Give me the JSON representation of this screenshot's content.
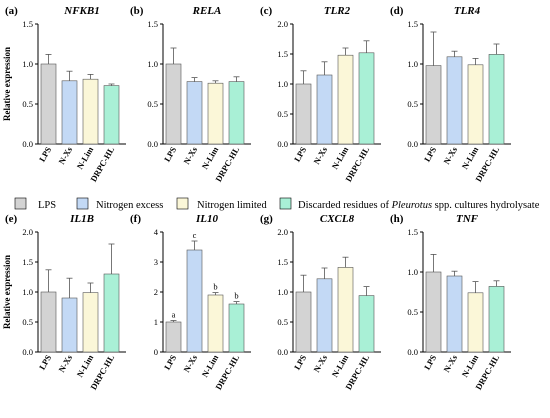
{
  "figure": {
    "ylabel": "Relative expression",
    "legend": [
      {
        "label": "LPS",
        "color": "#d3d3d3"
      },
      {
        "label": "Nitrogen excess",
        "color": "#c3d9f5"
      },
      {
        "label": "Nitrogen limited",
        "color": "#fbf7d8"
      },
      {
        "label_parts": [
          "Discarded residues of ",
          "Pleurotus",
          " spp. cultures hydrolysate"
        ],
        "color": "#a9f0d6"
      }
    ]
  },
  "chart_data": [
    {
      "type": "bar",
      "panel": "(a)",
      "title": "NFKB1",
      "categories": [
        "LPS",
        "N-Xs",
        "N-Lim",
        "DRPC-HL"
      ],
      "values": [
        1.0,
        0.79,
        0.81,
        0.73
      ],
      "errors": [
        0.12,
        0.12,
        0.06,
        0.02
      ],
      "ylim": [
        0,
        1.5
      ],
      "ticks": [
        "0.0",
        "0.5",
        "1.0",
        "1.5"
      ],
      "letters": [
        "",
        "",
        "",
        ""
      ],
      "ylabel": "Relative expression"
    },
    {
      "type": "bar",
      "panel": "(b)",
      "title": "RELA",
      "categories": [
        "LPS",
        "N-Xs",
        "N-Lim",
        "DRPC-HL"
      ],
      "values": [
        1.0,
        0.78,
        0.76,
        0.78
      ],
      "errors": [
        0.2,
        0.05,
        0.03,
        0.06
      ],
      "ylim": [
        0,
        1.5
      ],
      "ticks": [
        "0.0",
        "0.5",
        "1.0",
        "1.5"
      ],
      "letters": [
        "",
        "",
        "",
        ""
      ],
      "ylabel": ""
    },
    {
      "type": "bar",
      "panel": "(c)",
      "title": "TLR2",
      "categories": [
        "LPS",
        "N-Xs",
        "N-Lim",
        "DRPC-HL"
      ],
      "values": [
        1.0,
        1.15,
        1.48,
        1.52
      ],
      "errors": [
        0.22,
        0.22,
        0.12,
        0.2
      ],
      "ylim": [
        0,
        2.0
      ],
      "ticks": [
        "0.0",
        "0.5",
        "1.0",
        "1.5",
        "2.0"
      ],
      "letters": [
        "",
        "",
        "",
        ""
      ],
      "ylabel": ""
    },
    {
      "type": "bar",
      "panel": "(d)",
      "title": "TLR4",
      "categories": [
        "LPS",
        "N-Xs",
        "N-Lim",
        "DRPC-HL"
      ],
      "values": [
        0.98,
        1.09,
        0.99,
        1.12
      ],
      "errors": [
        0.42,
        0.07,
        0.08,
        0.13
      ],
      "ylim": [
        0,
        1.5
      ],
      "ticks": [
        "0.0",
        "0.5",
        "1.0",
        "1.5"
      ],
      "letters": [
        "",
        "",
        "",
        ""
      ],
      "ylabel": ""
    },
    {
      "type": "bar",
      "panel": "(e)",
      "title": "IL1B",
      "categories": [
        "LPS",
        "N-Xs",
        "N-Lim",
        "DRPC-HL"
      ],
      "values": [
        1.0,
        0.9,
        0.99,
        1.3
      ],
      "errors": [
        0.37,
        0.33,
        0.16,
        0.5
      ],
      "ylim": [
        0,
        2.0
      ],
      "ticks": [
        "0.0",
        "0.5",
        "1.0",
        "1.5",
        "2.0"
      ],
      "letters": [
        "",
        "",
        "",
        ""
      ],
      "ylabel": "Relative expression"
    },
    {
      "type": "bar",
      "panel": "(f)",
      "title": "IL10",
      "categories": [
        "LPS",
        "N-Xs",
        "N-Lim",
        "DRPC-HL"
      ],
      "values": [
        1.0,
        3.4,
        1.9,
        1.6
      ],
      "errors": [
        0.05,
        0.3,
        0.08,
        0.08
      ],
      "ylim": [
        0,
        4
      ],
      "ticks": [
        "0",
        "1",
        "2",
        "3",
        "4"
      ],
      "letters": [
        "a",
        "c",
        "b",
        "b"
      ],
      "ylabel": ""
    },
    {
      "type": "bar",
      "panel": "(g)",
      "title": "CXCL8",
      "categories": [
        "LPS",
        "N-Xs",
        "N-Lim",
        "DRPC-HL"
      ],
      "values": [
        1.0,
        1.22,
        1.41,
        0.94
      ],
      "errors": [
        0.28,
        0.18,
        0.17,
        0.15
      ],
      "ylim": [
        0,
        2.0
      ],
      "ticks": [
        "0.0",
        "0.5",
        "1.0",
        "1.5",
        "2.0"
      ],
      "letters": [
        "",
        "",
        "",
        ""
      ],
      "ylabel": ""
    },
    {
      "type": "bar",
      "panel": "(h)",
      "title": "TNF",
      "categories": [
        "LPS",
        "N-Xs",
        "N-Lim",
        "DRPC-HL"
      ],
      "values": [
        1.0,
        0.95,
        0.74,
        0.82
      ],
      "errors": [
        0.22,
        0.06,
        0.14,
        0.07
      ],
      "ylim": [
        0,
        1.5
      ],
      "ticks": [
        "0.0",
        "0.5",
        "1.0",
        "1.5"
      ],
      "letters": [
        "",
        "",
        "",
        ""
      ],
      "ylabel": ""
    }
  ]
}
